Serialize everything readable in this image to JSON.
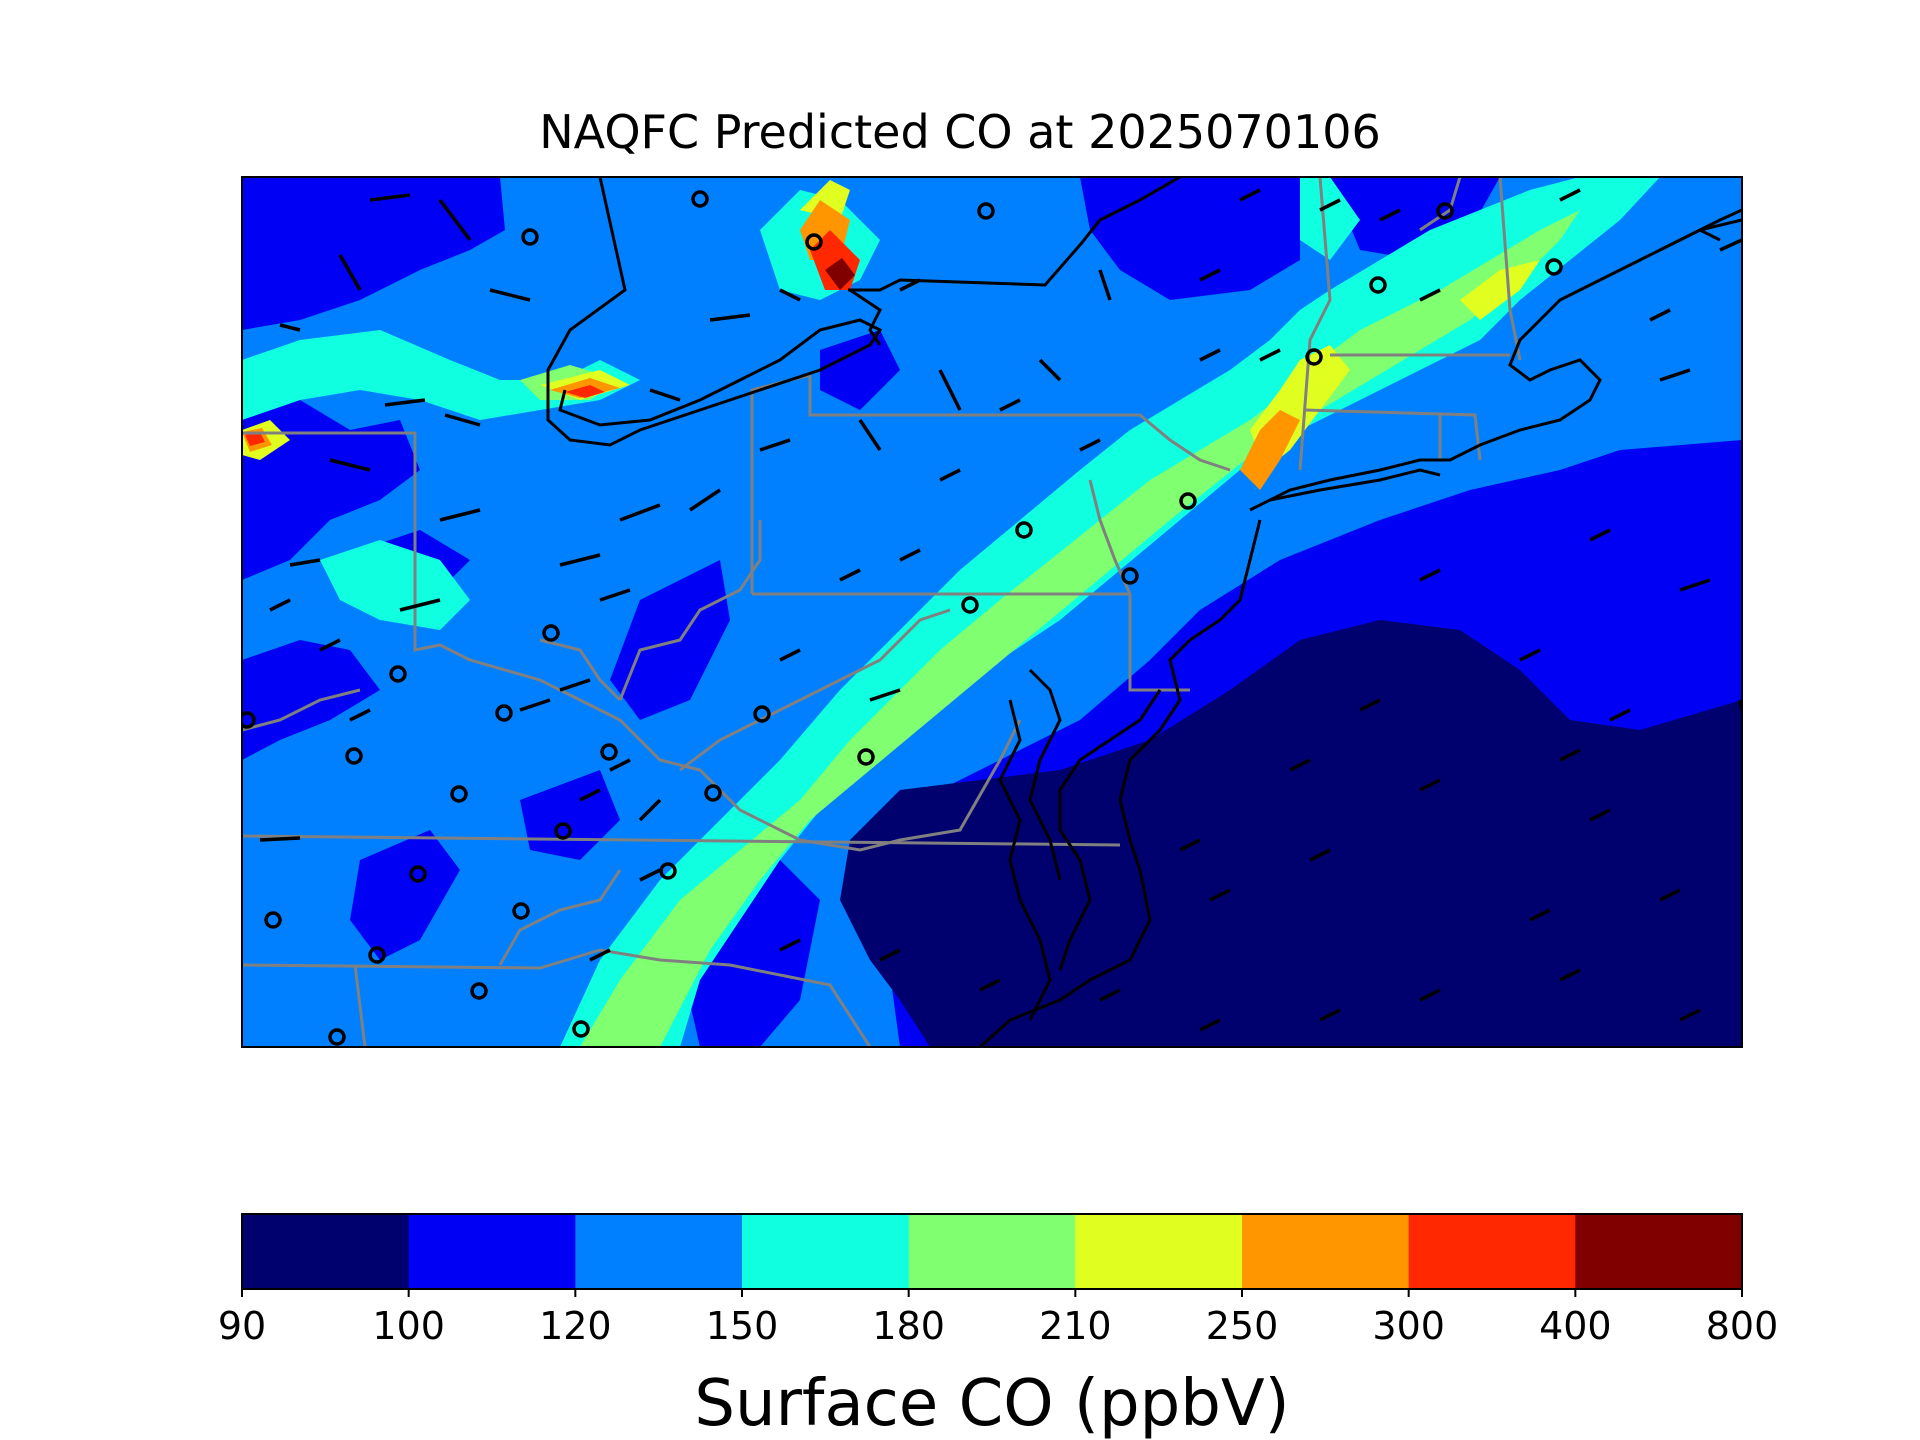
{
  "title": "NAQFC Predicted CO at 2025070106",
  "map": {
    "colors": {
      "deep_navy": "#00006e",
      "blue": "#0000f5",
      "medium_blue": "#0080ff",
      "cyan": "#10ffe0",
      "light_green": "#80ff70",
      "yellow": "#e0ff20",
      "orange": "#ff9600",
      "red": "#ff2800",
      "dark_red": "#800000",
      "state_border": "#808080",
      "coastline": "#000000"
    },
    "symbols": [
      "wind-barbs",
      "calm-circles"
    ]
  },
  "colorbar": {
    "label": "Surface CO (ppbV)",
    "ticks": [
      "90",
      "100",
      "120",
      "150",
      "180",
      "210",
      "250",
      "300",
      "400",
      "800"
    ],
    "colors": [
      "#00006e",
      "#0000f5",
      "#0080ff",
      "#10ffe0",
      "#80ff70",
      "#e0ff20",
      "#ff9600",
      "#ff2800",
      "#800000"
    ]
  }
}
